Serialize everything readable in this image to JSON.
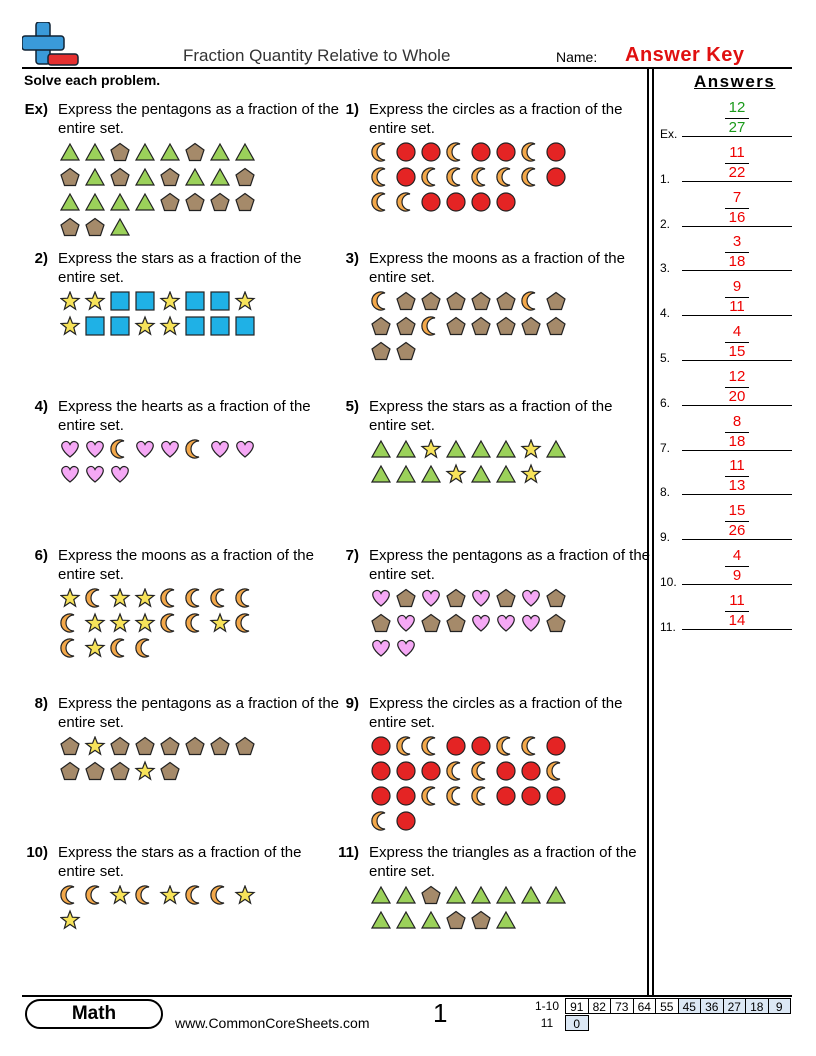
{
  "header": {
    "title": "Fraction Quantity Relative to Whole",
    "name_label": "Name:",
    "name_value": "Answer Key"
  },
  "instructions": "Solve each problem.",
  "problems": [
    {
      "number": "Ex)",
      "text": "Express the pentagons as a fraction of the entire set."
    },
    {
      "number": "1)",
      "text": "Express the circles as a fraction of the entire set."
    },
    {
      "number": "2)",
      "text": "Express the stars as a fraction of the entire set."
    },
    {
      "number": "3)",
      "text": "Express the moons as a fraction of the entire set."
    },
    {
      "number": "4)",
      "text": "Express the hearts as a fraction of the entire set."
    },
    {
      "number": "5)",
      "text": "Express the stars as a fraction of the entire set."
    },
    {
      "number": "6)",
      "text": "Express the moons as a fraction of the entire set."
    },
    {
      "number": "7)",
      "text": "Express the pentagons as a fraction of the entire set."
    },
    {
      "number": "8)",
      "text": "Express the pentagons as a fraction of the entire set."
    },
    {
      "number": "9)",
      "text": "Express the circles as a fraction of the entire set."
    },
    {
      "number": "10)",
      "text": "Express the stars as a fraction of the entire set."
    },
    {
      "number": "11)",
      "text": "Express the triangles as a fraction of the entire set."
    }
  ],
  "answers": {
    "heading": "Answers",
    "items": [
      {
        "label": "Ex.",
        "numerator": "12",
        "denominator": "27"
      },
      {
        "label": "1.",
        "numerator": "11",
        "denominator": "22"
      },
      {
        "label": "2.",
        "numerator": "7",
        "denominator": "16"
      },
      {
        "label": "3.",
        "numerator": "3",
        "denominator": "18"
      },
      {
        "label": "4.",
        "numerator": "9",
        "denominator": "11"
      },
      {
        "label": "5.",
        "numerator": "4",
        "denominator": "15"
      },
      {
        "label": "6.",
        "numerator": "12",
        "denominator": "20"
      },
      {
        "label": "7.",
        "numerator": "8",
        "denominator": "18"
      },
      {
        "label": "8.",
        "numerator": "11",
        "denominator": "13"
      },
      {
        "label": "9.",
        "numerator": "15",
        "denominator": "26"
      },
      {
        "label": "10.",
        "numerator": "4",
        "denominator": "9"
      },
      {
        "label": "11.",
        "numerator": "11",
        "denominator": "14"
      }
    ]
  },
  "footer": {
    "subject": "Math",
    "website": "www.CommonCoreSheets.com",
    "page": "1",
    "score_rows": [
      {
        "label": "1-10",
        "scores": [
          "91",
          "82",
          "73",
          "64",
          "55",
          "45",
          "36",
          "27",
          "18",
          "9"
        ]
      },
      {
        "label": "11",
        "scores": [
          "0"
        ]
      }
    ]
  }
}
